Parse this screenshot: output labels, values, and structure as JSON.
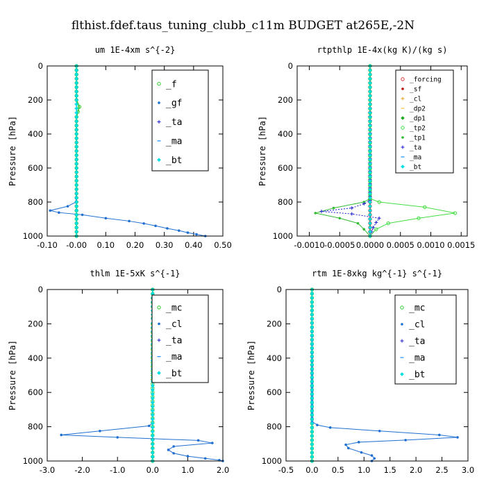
{
  "figure": {
    "title": "flthist.fdef.taus_tuning_clubb_c11m  BUDGET at265E,-2N"
  },
  "chart_data": [
    {
      "type": "line",
      "title": "um  1E-4xm s^{-2}",
      "ylabel": "Pressure [hPa]",
      "xlabel": "",
      "xlim": [
        -0.1,
        0.5
      ],
      "ylim": [
        1000,
        0
      ],
      "xticks": [
        "-0.10",
        "-0.00",
        "0.10",
        "0.20",
        "0.30",
        "0.40",
        "0.50"
      ],
      "yticks": [
        "0",
        "200",
        "400",
        "600",
        "800",
        "1000"
      ],
      "legend": "top-right",
      "series": [
        {
          "name": "_f",
          "color": "#33cc33",
          "marker": "circle",
          "points": [
            [
              0,
              0
            ],
            [
              0,
              100
            ],
            [
              0,
              200
            ],
            [
              0.01,
              240
            ],
            [
              0,
              300
            ],
            [
              0,
              400
            ],
            [
              0,
              500
            ],
            [
              0,
              600
            ],
            [
              0,
              700
            ],
            [
              0,
              800
            ],
            [
              0,
              900
            ],
            [
              0,
              1000
            ]
          ]
        },
        {
          "name": "_gf",
          "color": "#1f6fd1",
          "marker": "dot",
          "points": [
            [
              0,
              0
            ],
            [
              0,
              700
            ],
            [
              -0.002,
              800
            ],
            [
              -0.03,
              825
            ],
            [
              -0.09,
              850
            ],
            [
              -0.06,
              862
            ],
            [
              0.02,
              875
            ],
            [
              0.1,
              895
            ],
            [
              0.18,
              912
            ],
            [
              0.23,
              926
            ],
            [
              0.27,
              940
            ],
            [
              0.31,
              955
            ],
            [
              0.35,
              968
            ],
            [
              0.38,
              980
            ],
            [
              0.41,
              990
            ],
            [
              0.44,
              1000
            ]
          ]
        },
        {
          "name": "_ta",
          "color": "#1a1acc",
          "marker": "plus",
          "points": [
            [
              0,
              0
            ],
            [
              0,
              1000
            ]
          ]
        },
        {
          "name": "_ma",
          "color": "#1a8cff",
          "marker": "dash",
          "points": [
            [
              0,
              0
            ],
            [
              0,
              1000
            ]
          ]
        },
        {
          "name": "_bt",
          "color": "#00e0e0",
          "marker": "diamond",
          "points": [
            [
              0,
              0
            ],
            [
              0,
              1000
            ]
          ]
        }
      ]
    },
    {
      "type": "line",
      "title": "rtpthlp  1E-4x(kg K)/(kg s)",
      "ylabel": "Pressure [hPa]",
      "xlabel": "",
      "xlim": [
        -0.0012,
        0.0016
      ],
      "ylim": [
        1000,
        0
      ],
      "xticks": [
        "-0.0010",
        "-0.0005",
        "0.0000",
        "0.0005",
        "0.0010",
        "0.0015"
      ],
      "yticks": [
        "0",
        "200",
        "400",
        "600",
        "800",
        "1000"
      ],
      "legend": "top-right",
      "series": [
        {
          "name": "_forcing",
          "color": "#dd3333",
          "marker": "circle",
          "points": [
            [
              0,
              0
            ],
            [
              0,
              1000
            ]
          ]
        },
        {
          "name": "_sf",
          "color": "#c01010",
          "marker": "dot",
          "points": [
            [
              0,
              0
            ],
            [
              0,
              1000
            ]
          ]
        },
        {
          "name": "_cl",
          "color": "#e8a020",
          "marker": "plus",
          "points": [
            [
              0,
              0
            ],
            [
              0,
              1000
            ]
          ]
        },
        {
          "name": "_dp2",
          "color": "#f0c040",
          "marker": "dash",
          "points": [
            [
              0,
              0
            ],
            [
              0,
              1000
            ]
          ]
        },
        {
          "name": "_dp1",
          "color": "#22aa22",
          "marker": "diamond",
          "points": [
            [
              0,
              0
            ],
            [
              0,
              1000
            ]
          ]
        },
        {
          "name": "_tp2",
          "color": "#44dd44",
          "marker": "circle",
          "points": [
            [
              0,
              0
            ],
            [
              0,
              780
            ],
            [
              0.00015,
              800
            ],
            [
              0.0009,
              830
            ],
            [
              0.0014,
              865
            ],
            [
              0.0008,
              895
            ],
            [
              0.0003,
              925
            ],
            [
              0.0001,
              960
            ],
            [
              0,
              1000
            ]
          ]
        },
        {
          "name": "_tp1",
          "color": "#33bb33",
          "marker": "dot",
          "points": [
            [
              0,
              0
            ],
            [
              0,
              780
            ],
            [
              -0.0001,
              800
            ],
            [
              -0.0006,
              835
            ],
            [
              -0.0009,
              865
            ],
            [
              -0.0005,
              895
            ],
            [
              -0.0002,
              925
            ],
            [
              -0.0001,
              960
            ],
            [
              0,
              1000
            ]
          ]
        },
        {
          "name": "_ta",
          "color": "#1a1acc",
          "marker": "plus",
          "points": [
            [
              0,
              0
            ],
            [
              0,
              790
            ],
            [
              -0.0001,
              810
            ],
            [
              -0.0003,
              835
            ],
            [
              -0.0008,
              855
            ],
            [
              -0.0003,
              870
            ],
            [
              0.00015,
              895
            ],
            [
              0.0001,
              920
            ],
            [
              5e-05,
              950
            ],
            [
              0,
              1000
            ]
          ]
        },
        {
          "name": "_ma",
          "color": "#1a8cff",
          "marker": "dash",
          "points": [
            [
              0,
              0
            ],
            [
              0,
              1000
            ]
          ]
        },
        {
          "name": "_bt",
          "color": "#00e0e0",
          "marker": "diamond",
          "points": [
            [
              0,
              0
            ],
            [
              0,
              1000
            ]
          ]
        }
      ]
    },
    {
      "type": "line",
      "title": "thlm  1E-5xK s^{-1}",
      "ylabel": "Pressure [hPa]",
      "xlabel": "",
      "xlim": [
        -3.0,
        2.0
      ],
      "ylim": [
        1000,
        0
      ],
      "xticks": [
        "-3.0",
        "-2.0",
        "-1.0",
        "0.0",
        "1.0",
        "2.0"
      ],
      "yticks": [
        "0",
        "200",
        "400",
        "600",
        "800",
        "1000"
      ],
      "legend": "top-right",
      "series": [
        {
          "name": "_mc",
          "color": "#33cc33",
          "marker": "circle",
          "points": [
            [
              0,
              0
            ],
            [
              0,
              100
            ],
            [
              0.02,
              130
            ],
            [
              0,
              200
            ],
            [
              0,
              400
            ],
            [
              0,
              600
            ],
            [
              0,
              800
            ],
            [
              0,
              1000
            ]
          ]
        },
        {
          "name": "_cl",
          "color": "#1f6fd1",
          "marker": "dot",
          "points": [
            [
              0,
              0
            ],
            [
              0,
              780
            ],
            [
              -0.1,
              795
            ],
            [
              -1.5,
              825
            ],
            [
              -2.6,
              848
            ],
            [
              -1.0,
              862
            ],
            [
              1.3,
              880
            ],
            [
              1.7,
              895
            ],
            [
              0.6,
              915
            ],
            [
              0.45,
              935
            ],
            [
              0.6,
              955
            ],
            [
              1.0,
              972
            ],
            [
              1.5,
              985
            ],
            [
              1.9,
              995
            ],
            [
              2.0,
              1000
            ]
          ]
        },
        {
          "name": "_ta",
          "color": "#1a1acc",
          "marker": "plus",
          "points": [
            [
              0,
              0
            ],
            [
              0,
              1000
            ]
          ]
        },
        {
          "name": "_ma",
          "color": "#1a8cff",
          "marker": "dash",
          "points": [
            [
              0,
              0
            ],
            [
              0,
              1000
            ]
          ]
        },
        {
          "name": "_bt",
          "color": "#00e0e0",
          "marker": "diamond",
          "points": [
            [
              0,
              0
            ],
            [
              0,
              1000
            ]
          ]
        }
      ]
    },
    {
      "type": "line",
      "title": "rtm  1E-8xkg kg^{-1} s^{-1}",
      "ylabel": "Pressure [hPa]",
      "xlabel": "",
      "xlim": [
        -0.5,
        3.0
      ],
      "ylim": [
        1000,
        0
      ],
      "xticks": [
        "-0.5",
        "0.0",
        "0.5",
        "1.0",
        "1.5",
        "2.0",
        "2.5",
        "3.0"
      ],
      "yticks": [
        "0",
        "200",
        "400",
        "600",
        "800",
        "1000"
      ],
      "legend": "top-right",
      "series": [
        {
          "name": "_mc",
          "color": "#33cc33",
          "marker": "circle",
          "points": [
            [
              0,
              0
            ],
            [
              0,
              1000
            ]
          ]
        },
        {
          "name": "_cl",
          "color": "#1f6fd1",
          "marker": "dot",
          "points": [
            [
              0,
              0
            ],
            [
              0,
              770
            ],
            [
              0.1,
              790
            ],
            [
              0.35,
              805
            ],
            [
              1.3,
              825
            ],
            [
              2.45,
              848
            ],
            [
              2.8,
              862
            ],
            [
              1.8,
              878
            ],
            [
              0.9,
              890
            ],
            [
              0.65,
              905
            ],
            [
              0.7,
              925
            ],
            [
              0.95,
              950
            ],
            [
              1.15,
              968
            ],
            [
              1.2,
              985
            ],
            [
              1.15,
              1000
            ]
          ]
        },
        {
          "name": "_ta",
          "color": "#1a1acc",
          "marker": "plus",
          "points": [
            [
              0,
              0
            ],
            [
              0,
              1000
            ]
          ]
        },
        {
          "name": "_ma",
          "color": "#1a8cff",
          "marker": "dash",
          "points": [
            [
              0,
              0
            ],
            [
              0,
              1000
            ]
          ]
        },
        {
          "name": "_bt",
          "color": "#00e0e0",
          "marker": "diamond",
          "points": [
            [
              0,
              0
            ],
            [
              0,
              1000
            ]
          ]
        }
      ]
    }
  ]
}
